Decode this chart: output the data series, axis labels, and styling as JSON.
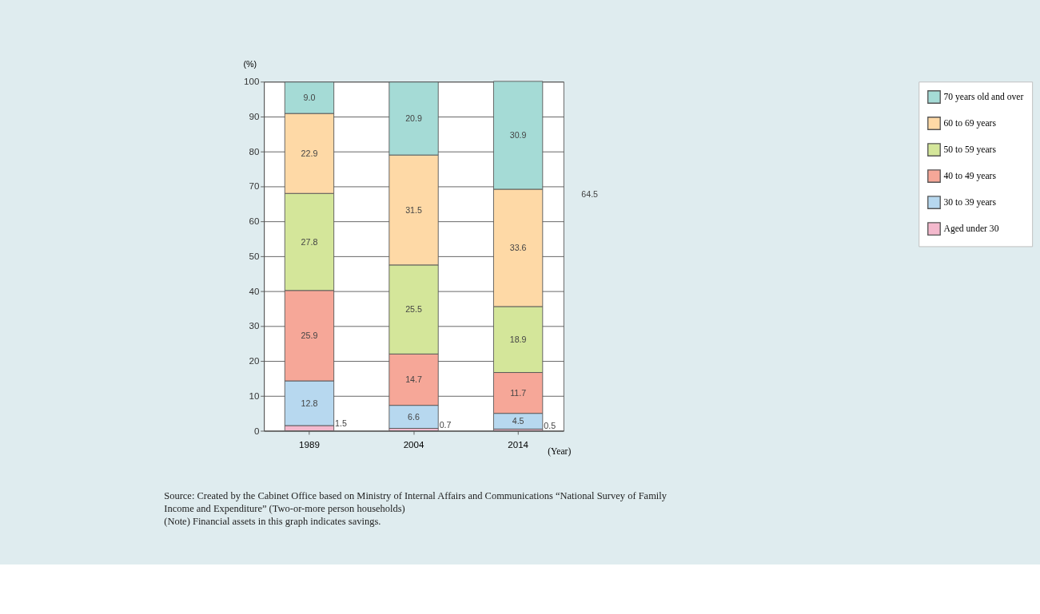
{
  "chart_data": {
    "type": "bar",
    "stacked": true,
    "xlabel": "(Year)",
    "ylabel": "(%)",
    "categories": [
      "1989",
      "2004",
      "2014"
    ],
    "series": [
      {
        "name": "Aged under 30",
        "color": "#f4b9cd",
        "values": [
          1.5,
          0.7,
          0.5
        ],
        "value_labels": [
          "1.5",
          "0.7",
          "0.5"
        ]
      },
      {
        "name": "30 to 39 years",
        "color": "#b7d8ef",
        "values": [
          12.8,
          6.6,
          4.5
        ],
        "value_labels": [
          "12.8",
          "6.6",
          "4.5"
        ]
      },
      {
        "name": "40 to 49 years",
        "color": "#f6a798",
        "values": [
          25.9,
          14.7,
          11.7
        ],
        "value_labels": [
          "25.9",
          "14.7",
          "11.7"
        ]
      },
      {
        "name": "50 to 59 years",
        "color": "#d4e69a",
        "values": [
          27.8,
          25.5,
          18.9
        ],
        "value_labels": [
          "27.8",
          "25.5",
          "18.9"
        ]
      },
      {
        "name": "60 to 69 years",
        "color": "#fed9a6",
        "values": [
          22.9,
          31.5,
          33.6
        ],
        "value_labels": [
          "22.9",
          "31.5",
          "33.6"
        ]
      },
      {
        "name": "70 years old and over",
        "color": "#a5dbd6",
        "values": [
          9.0,
          20.9,
          30.9
        ],
        "value_labels": [
          "9.0",
          "20.9",
          "30.9"
        ]
      }
    ],
    "ylim": [
      0,
      100
    ],
    "yticks": [
      0,
      10,
      20,
      30,
      40,
      50,
      60,
      70,
      80,
      90,
      100
    ],
    "grid": "y",
    "legend": "right",
    "annotations": [
      "64.5",
      "Source:     Created by the Cabinet Office based on Ministry of Internal Affairs and Communications “National Survey of Family Income and Expenditure” (Two-or-more person households)",
      "(Note)      Financial assets in this graph indicates savings."
    ]
  }
}
